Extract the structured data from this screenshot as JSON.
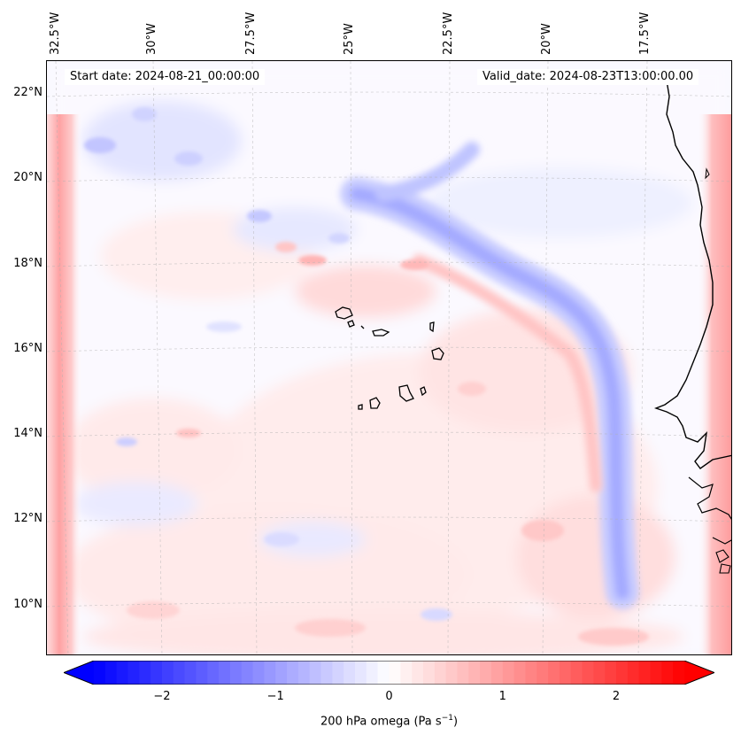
{
  "map": {
    "start_date": "Start date: 2024-08-21_00:00:00",
    "valid_date": "Valid_date: 2024-08-23T13:00:00.00",
    "variable": "200 hPa omega",
    "units_base": "Pa s",
    "units_exponent": "−1",
    "longitude_labels": [
      "32.5°W",
      "30°W",
      "27.5°W",
      "25°W",
      "22.5°W",
      "20°W",
      "17.5°W"
    ],
    "latitude_labels": [
      "22°N",
      "20°N",
      "18°N",
      "16°N",
      "14°N",
      "12°N",
      "10°N"
    ],
    "colorbar": {
      "min": -2.6,
      "max": 2.6,
      "ticks": [
        "−2",
        "−1",
        "0",
        "1",
        "2"
      ],
      "tick_values": [
        -2,
        -1,
        0,
        1,
        2
      ],
      "negative_color": "#0000ff",
      "neutral_color": "#ffffff",
      "positive_color": "#ff0000"
    },
    "coastline_color": "#000000",
    "gridline_color": "#b0b0b0"
  }
}
